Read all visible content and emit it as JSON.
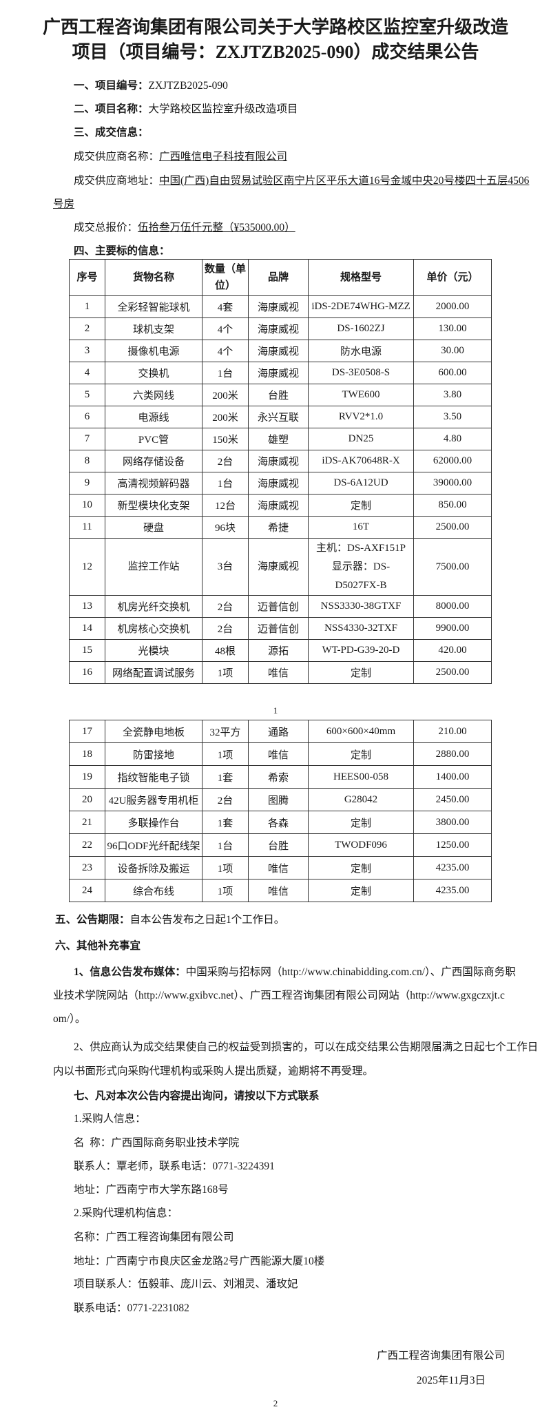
{
  "title": "广西工程咨询集团有限公司关于大学路校区监控室升级改造项目（项目编号：ZXJTZB2025-090）成交结果公告",
  "s1": {
    "label": "一、项目编号：",
    "value": "ZXJTZB2025-090"
  },
  "s2": {
    "label": "二、项目名称：",
    "value": "大学路校区监控室升级改造项目"
  },
  "s3": {
    "label": "三、成交信息：",
    "supplier_label": "成交供应商名称：",
    "supplier": "广西唯信电子科技有限公司",
    "address_label": "成交供应商地址：",
    "address_1": "中国(广西)自由贸易试验区南宁片区平乐大道16号金域中央20号楼四十五层4506",
    "address_2": "号房",
    "price_label": "成交总报价：",
    "price": "伍拾叁万伍仟元整（¥535000.00）"
  },
  "s4": {
    "label": "四、主要标的信息："
  },
  "table": {
    "headers": [
      "序号",
      "货物名称",
      "数量（单位）",
      "品牌",
      "规格型号",
      "单价（元）"
    ],
    "rows": [
      [
        "1",
        "全彩轻智能球机",
        "4套",
        "海康威视",
        "iDS-2DE74WHG-MZZ",
        "2000.00"
      ],
      [
        "2",
        "球机支架",
        "4个",
        "海康威视",
        "DS-1602ZJ",
        "130.00"
      ],
      [
        "3",
        "摄像机电源",
        "4个",
        "海康威视",
        "防水电源",
        "30.00"
      ],
      [
        "4",
        "交换机",
        "1台",
        "海康威视",
        "DS-3E0508-S",
        "600.00"
      ],
      [
        "5",
        "六类网线",
        "200米",
        "台胜",
        "TWE600",
        "3.80"
      ],
      [
        "6",
        "电源线",
        "200米",
        "永兴互联",
        "RVV2*1.0",
        "3.50"
      ],
      [
        "7",
        "PVC管",
        "150米",
        "雄塑",
        "DN25",
        "4.80"
      ],
      [
        "8",
        "网络存储设备",
        "2台",
        "海康威视",
        "iDS-AK70648R-X",
        "62000.00"
      ],
      [
        "9",
        "高清视频解码器",
        "1台",
        "海康威视",
        "DS-6A12UD",
        "39000.00"
      ],
      [
        "10",
        "新型模块化支架",
        "12台",
        "海康威视",
        "定制",
        "850.00"
      ],
      [
        "11",
        "硬盘",
        "96块",
        "希捷",
        "16T",
        "2500.00"
      ],
      [
        "12",
        "监控工作站",
        "3台",
        "海康威视",
        "主机：DS-AXF151P 显示器：DS-D5027FX-B",
        "7500.00"
      ],
      [
        "13",
        "机房光纤交换机",
        "2台",
        "迈普信创",
        "NSS3330-38GTXF",
        "8000.00"
      ],
      [
        "14",
        "机房核心交换机",
        "2台",
        "迈普信创",
        "NSS4330-32TXF",
        "9900.00"
      ],
      [
        "15",
        "光模块",
        "48根",
        "源拓",
        "WT-PD-G39-20-D",
        "420.00"
      ],
      [
        "16",
        "网络配置调试服务",
        "1项",
        "唯信",
        "定制",
        "2500.00"
      ],
      [
        "17",
        "全瓷静电地板",
        "32平方",
        "通路",
        "600×600×40mm",
        "210.00"
      ],
      [
        "18",
        "防雷接地",
        "1项",
        "唯信",
        "定制",
        "2880.00"
      ],
      [
        "19",
        "指纹智能电子锁",
        "1套",
        "希索",
        "HEES00-058",
        "1400.00"
      ],
      [
        "20",
        "42U服务器专用机柜",
        "2台",
        "图腾",
        "G28042",
        "2450.00"
      ],
      [
        "21",
        "多联操作台",
        "1套",
        "各森",
        "定制",
        "3800.00"
      ],
      [
        "22",
        "96口ODF光纤配线架",
        "1台",
        "台胜",
        "TWODF096",
        "1250.00"
      ],
      [
        "23",
        "设备拆除及搬运",
        "1项",
        "唯信",
        "定制",
        "4235.00"
      ],
      [
        "24",
        "综合布线",
        "1项",
        "唯信",
        "定制",
        "4235.00"
      ]
    ]
  },
  "page_1": "1",
  "s5": {
    "label": "五、公告期限：",
    "value": "自本公告发布之日起1个工作日。"
  },
  "s6": {
    "label": "六、其他补充事宜",
    "p1_label": "1、信息公告发布媒体：",
    "p1_l1": "中国采购与招标网（http://www.chinabidding.com.cn/）、广西国际商务职",
    "p1_l2": "业技术学院网站（http://www.gxibvc.net）、广西工程咨询集团有限公司网站（http://www.gxgczxjt.c",
    "p1_l3": "om/）。",
    "p2_l1": "2、供应商认为成交结果使自己的权益受到损害的，可以在成交结果公告期限届满之日起七个工作日",
    "p2_l2": "内以书面形式向采购代理机构或采购人提出质疑，逾期将不再受理。"
  },
  "s7": {
    "label": "七、凡对本次公告内容提出询问，请按以下方式联系",
    "buyer_head": "1.采购人信息：",
    "buyer_name": "名  称：广西国际商务职业技术学院",
    "buyer_contact": "联系人：覃老师，联系电话：0771-3224391",
    "buyer_address": "地址：广西南宁市大学东路168号",
    "agent_head": "2.采购代理机构信息：",
    "agent_name": "名称：广西工程咨询集团有限公司",
    "agent_address": "地址：广西南宁市良庆区金龙路2号广西能源大厦10楼",
    "agent_contacts": "项目联系人：伍毅菲、庞川云、刘湘灵、潘玫妃",
    "agent_phone": "联系电话：0771-2231082"
  },
  "signature": {
    "company": "广西工程咨询集团有限公司",
    "date": "2025年11月3日"
  },
  "page_2": "2"
}
